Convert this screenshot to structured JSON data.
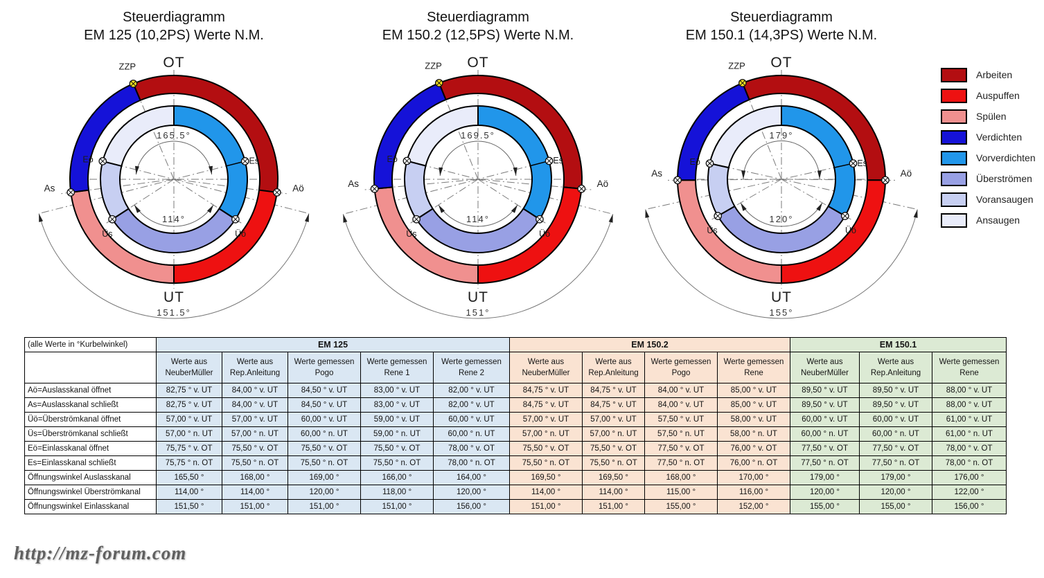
{
  "legend": {
    "items": [
      {
        "key": "arbeiten",
        "label": "Arbeiten",
        "color": "#b30e11"
      },
      {
        "key": "auspuffen",
        "label": "Auspuffen",
        "color": "#ee1111"
      },
      {
        "key": "spuelen",
        "label": "Spülen",
        "color": "#f0908f"
      },
      {
        "key": "verdichten",
        "label": "Verdichten",
        "color": "#1512d8"
      },
      {
        "key": "vorverdichten",
        "label": "Vorverdichten",
        "color": "#2196ea"
      },
      {
        "key": "ueberstroemen",
        "label": "Überströmen",
        "color": "#98a0e4"
      },
      {
        "key": "voransaugen",
        "label": "Voransaugen",
        "color": "#c7cff2"
      },
      {
        "key": "ansaugen",
        "label": "Ansaugen",
        "color": "#e9ecfa"
      }
    ]
  },
  "diagram_labels": {
    "ot": "OT",
    "ut": "UT",
    "zzp": "ZZP",
    "as": "As",
    "ao": "Aö",
    "eo": "Eö",
    "es": "Es",
    "us": "Üs",
    "uo": "Üö"
  },
  "diagrams": [
    {
      "title_line1": "Steuerdiagramm",
      "title_line2": "EM 125 (10,2PS) Werte N.M.",
      "angles": {
        "ao_vor_ut": 82.75,
        "ue_vor_ut": 57.0,
        "ein_vor_ot": 75.75,
        "zzp_vor_ot": 23.0
      },
      "dim_labels": {
        "auslass": "165.5°",
        "ueberstroem": "114°",
        "einlass": "151.5°"
      }
    },
    {
      "title_line1": "Steuerdiagramm",
      "title_line2": "EM 150.2 (12,5PS) Werte N.M.",
      "angles": {
        "ao_vor_ut": 84.75,
        "ue_vor_ut": 57.0,
        "ein_vor_ot": 75.5,
        "zzp_vor_ot": 22.0
      },
      "dim_labels": {
        "auslass": "169.5°",
        "ueberstroem": "114°",
        "einlass": "151°"
      }
    },
    {
      "title_line1": "Steuerdiagramm",
      "title_line2": "EM 150.1 (14,3PS) Werte N.M.",
      "angles": {
        "ao_vor_ut": 89.5,
        "ue_vor_ot": 0,
        "ue_vor_ut": 60.0,
        "ein_vor_ot": 77.5,
        "zzp_vor_ot": 22.0
      },
      "dim_labels": {
        "auslass": "179°",
        "ueberstroem": "120°",
        "einlass": "155°"
      }
    }
  ],
  "table": {
    "corner_note": "(alle Werte in °Kurbelwinkel)",
    "groups": [
      {
        "name": "EM 125",
        "cols": [
          "Werte aus|NeuberMüller",
          "Werte aus|Rep.Anleitung",
          "Werte gemessen|Pogo",
          "Werte gemessen|Rene 1",
          "Werte gemessen|Rene 2"
        ]
      },
      {
        "name": "EM 150.2",
        "cols": [
          "Werte aus|NeuberMüller",
          "Werte aus|Rep.Anleitung",
          "Werte gemessen|Pogo",
          "Werte gemessen|Rene"
        ]
      },
      {
        "name": "EM 150.1",
        "cols": [
          "Werte aus|NeuberMüller",
          "Werte aus|Rep.Anleitung",
          "Werte gemessen|Rene"
        ]
      }
    ],
    "rows": [
      {
        "label": "Aö=Auslasskanal öffnet",
        "values": [
          "82,75 ° v. UT",
          "84,00 ° v. UT",
          "84,50 ° v. UT",
          "83,00 ° v. UT",
          "82,00 ° v. UT",
          "84,75 ° v. UT",
          "84,75 ° v. UT",
          "84,00 ° v. UT",
          "85,00 ° v. UT",
          "89,50 ° v. UT",
          "89,50 ° v. UT",
          "88,00 ° v. UT"
        ]
      },
      {
        "label": "As=Auslasskanal schließt",
        "values": [
          "82,75 ° v. UT",
          "84,00 ° v. UT",
          "84,50 ° v. UT",
          "83,00 ° v. UT",
          "82,00 ° v. UT",
          "84,75 ° v. UT",
          "84,75 ° v. UT",
          "84,00 ° v. UT",
          "85,00 ° v. UT",
          "89,50 ° v. UT",
          "89,50 ° v. UT",
          "88,00 ° v. UT"
        ]
      },
      {
        "label": "Üö=Überströmkanal öffnet",
        "values": [
          "57,00 ° v. UT",
          "57,00 ° v. UT",
          "60,00 ° v. UT",
          "59,00 ° v. UT",
          "60,00 ° v. UT",
          "57,00 ° v. UT",
          "57,00 ° v. UT",
          "57,50 ° v. UT",
          "58,00 ° v. UT",
          "60,00 ° v. UT",
          "60,00 ° v. UT",
          "61,00 ° v. UT"
        ]
      },
      {
        "label": "Üs=Überströmkanal schließt",
        "values": [
          "57,00 ° n. UT",
          "57,00 ° n. UT",
          "60,00 ° n. UT",
          "59,00 ° n. UT",
          "60,00 ° n. UT",
          "57,00 ° n. UT",
          "57,00 ° n. UT",
          "57,50 ° n. UT",
          "58,00 ° n. UT",
          "60,00 ° n. UT",
          "60,00 ° n. UT",
          "61,00 ° n. UT"
        ]
      },
      {
        "label": "Eö=Einlasskanal öffnet",
        "values": [
          "75,75 ° v. OT",
          "75,50 ° v. OT",
          "75,50 ° v. OT",
          "75,50 ° v. OT",
          "78,00 ° v. OT",
          "75,50 ° v. OT",
          "75,50 ° v. OT",
          "77,50 ° v. OT",
          "76,00 ° v. OT",
          "77,50 ° v. OT",
          "77,50 ° v. OT",
          "78,00 ° v. OT"
        ]
      },
      {
        "label": "Es=Einlasskanal schließt",
        "values": [
          "75,75 ° n. OT",
          "75,50 ° n. OT",
          "75,50 ° n. OT",
          "75,50 ° n. OT",
          "78,00 ° n. OT",
          "75,50 ° n. OT",
          "75,50 ° n. OT",
          "77,50 ° n. OT",
          "76,00 ° n. OT",
          "77,50 ° n. OT",
          "77,50 ° n. OT",
          "78,00 ° n. OT"
        ]
      },
      {
        "label": "Öffnungswinkel Auslasskanal",
        "values": [
          "165,50 °",
          "168,00 °",
          "169,00 °",
          "166,00 °",
          "164,00 °",
          "169,50 °",
          "169,50 °",
          "168,00 °",
          "170,00 °",
          "179,00 °",
          "179,00 °",
          "176,00 °"
        ]
      },
      {
        "label": "Öffnungswinkel Überströmkanal",
        "values": [
          "114,00 °",
          "114,00 °",
          "120,00 °",
          "118,00 °",
          "120,00 °",
          "114,00 °",
          "114,00 °",
          "115,00 °",
          "116,00 °",
          "120,00 °",
          "120,00 °",
          "122,00 °"
        ]
      },
      {
        "label": "Öffnungswinkel Einlasskanal",
        "values": [
          "151,50 °",
          "151,00 °",
          "151,00 °",
          "151,00 °",
          "156,00 °",
          "151,00 °",
          "151,00 °",
          "155,00 °",
          "152,00 °",
          "155,00 °",
          "155,00 °",
          "156,00 °"
        ]
      }
    ]
  },
  "watermark": "http://mz-forum.com"
}
